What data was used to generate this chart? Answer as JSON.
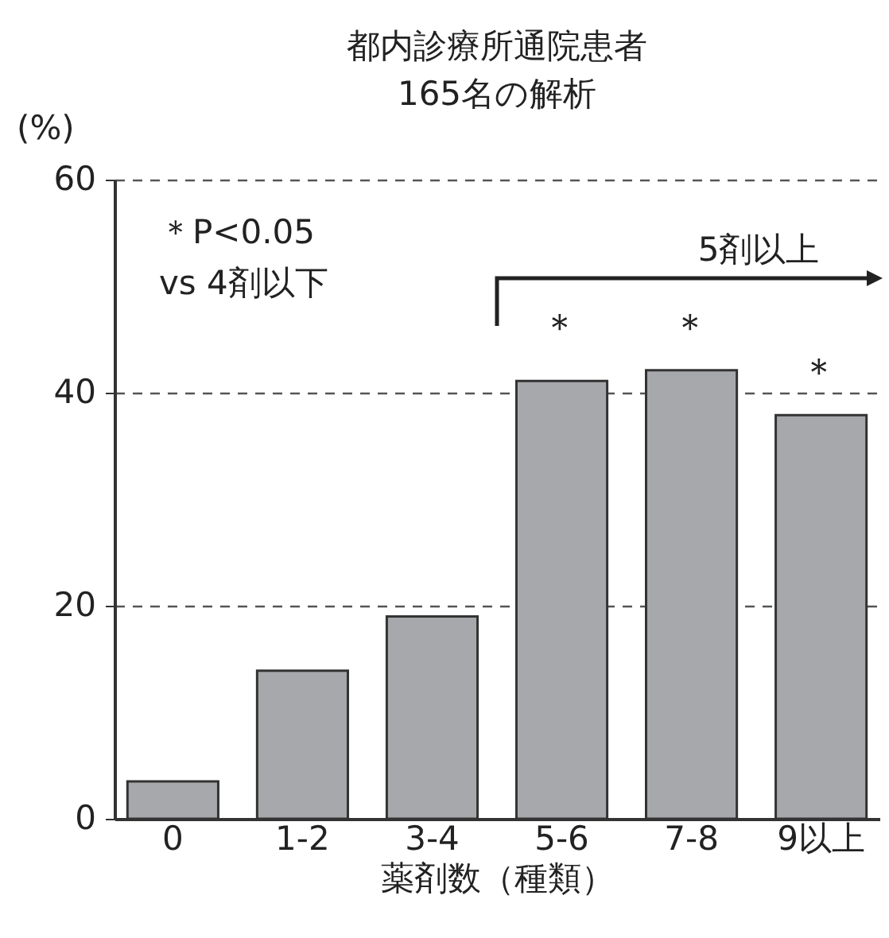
{
  "chart_data": {
    "type": "bar",
    "title": [
      "都内診療所通院患者",
      "165名の解析"
    ],
    "ylabel": "(%)",
    "xlabel": "薬剤数（種類）",
    "categories": [
      "0",
      "1-2",
      "3-4",
      "5-6",
      "7-8",
      "9以上"
    ],
    "values": [
      3.5,
      13.9,
      19.0,
      41.1,
      42.1,
      37.9
    ],
    "color": "#a7a8ab",
    "ylim": [
      0,
      60
    ],
    "yticks": [
      0,
      20,
      40,
      60
    ],
    "grid": "y",
    "annotations": [
      "＊P<0.05",
      "vs 4剤以下",
      "5剤以上",
      "＊",
      "＊",
      "＊"
    ]
  }
}
